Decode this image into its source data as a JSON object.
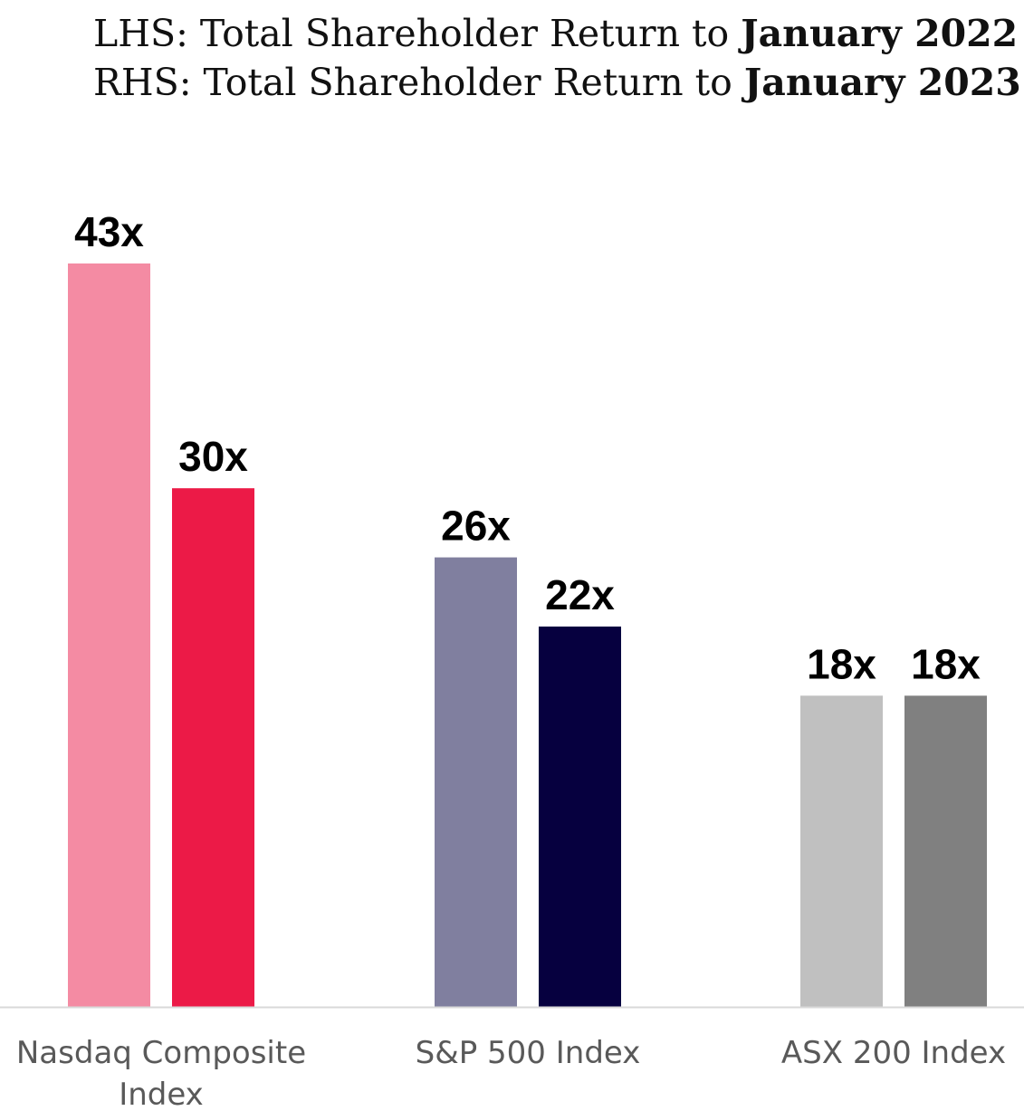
{
  "chart_data": {
    "type": "bar",
    "title_lines": [
      {
        "prefix": "LHS: Total Shareholder Return to ",
        "emphasis": "January 2022"
      },
      {
        "prefix": "RHS: Total Shareholder Return to ",
        "emphasis": "January 2023"
      }
    ],
    "categories": [
      {
        "label_lines": [
          "Nasdaq Composite",
          "Index"
        ]
      },
      {
        "label_lines": [
          "S&P 500 Index"
        ]
      },
      {
        "label_lines": [
          "ASX 200 Index"
        ]
      }
    ],
    "series": [
      {
        "name": "LHS: to January 2022",
        "values": [
          43,
          26,
          18
        ],
        "labels": [
          "43x",
          "26x",
          "18x"
        ]
      },
      {
        "name": "RHS: to January 2023",
        "values": [
          30,
          22,
          18
        ],
        "labels": [
          "30x",
          "22x",
          "18x"
        ]
      }
    ],
    "bar_colors": [
      [
        "#f48ba3",
        "#ec1a47"
      ],
      [
        "#807f9f",
        "#06003f"
      ],
      [
        "#c0c0c0",
        "#808080"
      ]
    ],
    "ylim": [
      0,
      43
    ],
    "grid": false,
    "legend": "none",
    "axis_color": "#d9d9d9",
    "label_color": "#000000",
    "category_label_color": "#595959"
  }
}
